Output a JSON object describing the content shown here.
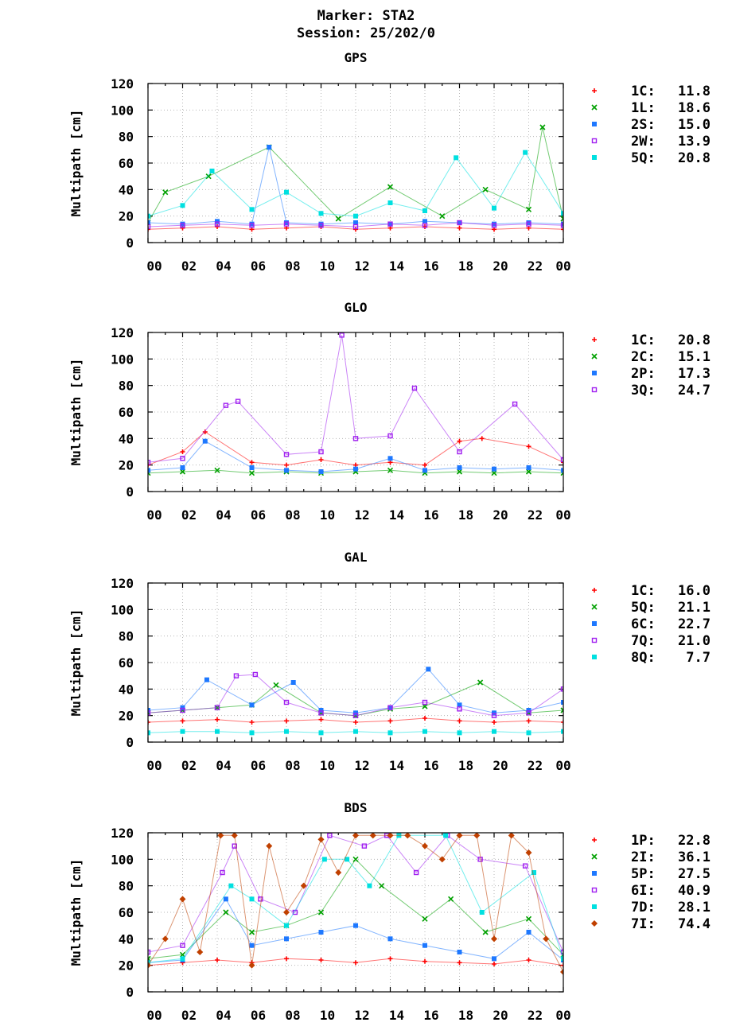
{
  "header": {
    "marker": "Marker: STA2",
    "session": "Session: 25/202/0"
  },
  "colors": {
    "red": "#ff0000",
    "green": "#00a000",
    "blue": "#1e78ff",
    "purple": "#a020f0",
    "cyan": "#00e0e0",
    "brown": "#c04000"
  },
  "chart_data": [
    {
      "type": "scatter",
      "title": "GPS",
      "xlabel": "",
      "ylabel": "Multipath [cm]",
      "xlim": [
        0,
        24
      ],
      "ylim": [
        0,
        120
      ],
      "xticks": [
        "00",
        "02",
        "04",
        "06",
        "08",
        "10",
        "12",
        "14",
        "16",
        "18",
        "20",
        "22",
        "00"
      ],
      "yticks": [
        0,
        20,
        40,
        60,
        80,
        100,
        120
      ],
      "grid": true,
      "legend_position": "right",
      "series": [
        {
          "name": "1C",
          "value": "11.8",
          "color": "#ff0000",
          "marker": "plus",
          "x": [
            0,
            2,
            4,
            6,
            8,
            10,
            12,
            14,
            16,
            18,
            20,
            22,
            24
          ],
          "y": [
            10,
            11,
            12,
            10,
            11,
            12,
            10,
            11,
            12,
            11,
            10,
            11,
            10
          ]
        },
        {
          "name": "1L",
          "value": "18.6",
          "color": "#00a000",
          "marker": "cross",
          "x": [
            0,
            1,
            3.5,
            7,
            11,
            14,
            17,
            19.5,
            22,
            22.8,
            24
          ],
          "y": [
            15,
            38,
            50,
            72,
            18,
            42,
            20,
            40,
            25,
            87,
            18
          ]
        },
        {
          "name": "2S",
          "value": "15.0",
          "color": "#1e78ff",
          "marker": "square",
          "x": [
            0,
            2,
            4,
            6,
            7,
            8,
            10,
            12,
            14,
            16,
            18,
            20,
            22,
            24
          ],
          "y": [
            15,
            14,
            16,
            14,
            72,
            15,
            14,
            15,
            14,
            16,
            15,
            14,
            15,
            14
          ]
        },
        {
          "name": "2W",
          "value": "13.9",
          "color": "#a020f0",
          "marker": "open-square",
          "x": [
            0,
            2,
            4,
            6,
            8,
            10,
            12,
            14,
            16,
            18,
            20,
            22,
            24
          ],
          "y": [
            12,
            13,
            14,
            13,
            14,
            13,
            12,
            14,
            13,
            15,
            13,
            14,
            13
          ]
        },
        {
          "name": "5Q",
          "value": "20.8",
          "color": "#00e0e0",
          "marker": "square",
          "x": [
            0,
            2,
            3.7,
            6,
            8,
            10,
            12,
            14,
            16,
            17.8,
            20,
            21.8,
            24
          ],
          "y": [
            20,
            28,
            54,
            25,
            38,
            22,
            20,
            30,
            24,
            64,
            26,
            68,
            22
          ]
        }
      ]
    },
    {
      "type": "scatter",
      "title": "GLO",
      "xlabel": "",
      "ylabel": "Multipath [cm]",
      "xlim": [
        0,
        24
      ],
      "ylim": [
        0,
        120
      ],
      "xticks": [
        "00",
        "02",
        "04",
        "06",
        "08",
        "10",
        "12",
        "14",
        "16",
        "18",
        "20",
        "22",
        "00"
      ],
      "yticks": [
        0,
        20,
        40,
        60,
        80,
        100,
        120
      ],
      "grid": true,
      "legend_position": "right",
      "series": [
        {
          "name": "1C",
          "value": "20.8",
          "color": "#ff0000",
          "marker": "plus",
          "x": [
            0,
            2,
            3.3,
            6,
            8,
            10,
            12,
            14,
            16,
            18,
            19.3,
            22,
            24
          ],
          "y": [
            20,
            30,
            45,
            22,
            20,
            24,
            20,
            22,
            20,
            38,
            40,
            34,
            22
          ]
        },
        {
          "name": "2C",
          "value": "15.1",
          "color": "#00a000",
          "marker": "cross",
          "x": [
            0,
            2,
            4,
            6,
            8,
            10,
            12,
            14,
            16,
            18,
            20,
            22,
            24
          ],
          "y": [
            14,
            15,
            16,
            14,
            15,
            14,
            15,
            16,
            14,
            15,
            14,
            15,
            14
          ]
        },
        {
          "name": "2P",
          "value": "17.3",
          "color": "#1e78ff",
          "marker": "square",
          "x": [
            0,
            2,
            3.3,
            6,
            8,
            10,
            12,
            14,
            16,
            18,
            20,
            22,
            24
          ],
          "y": [
            16,
            18,
            38,
            18,
            16,
            15,
            17,
            25,
            16,
            18,
            17,
            18,
            16
          ]
        },
        {
          "name": "3Q",
          "value": "24.7",
          "color": "#a020f0",
          "marker": "open-square",
          "x": [
            0,
            2,
            4.5,
            5.2,
            8,
            10,
            11.2,
            12,
            14,
            15.4,
            18,
            21.2,
            24
          ],
          "y": [
            22,
            25,
            65,
            68,
            28,
            30,
            118,
            40,
            42,
            78,
            30,
            66,
            24
          ]
        }
      ]
    },
    {
      "type": "scatter",
      "title": "GAL",
      "xlabel": "",
      "ylabel": "Multipath [cm]",
      "xlim": [
        0,
        24
      ],
      "ylim": [
        0,
        120
      ],
      "xticks": [
        "00",
        "02",
        "04",
        "06",
        "08",
        "10",
        "12",
        "14",
        "16",
        "18",
        "20",
        "22",
        "00"
      ],
      "yticks": [
        0,
        20,
        40,
        60,
        80,
        100,
        120
      ],
      "grid": true,
      "legend_position": "right",
      "series": [
        {
          "name": "1C",
          "value": "16.0",
          "color": "#ff0000",
          "marker": "plus",
          "x": [
            0,
            2,
            4,
            6,
            8,
            10,
            12,
            14,
            16,
            18,
            20,
            22,
            24
          ],
          "y": [
            15,
            16,
            17,
            15,
            16,
            17,
            15,
            16,
            18,
            16,
            15,
            16,
            15
          ]
        },
        {
          "name": "5Q",
          "value": "21.1",
          "color": "#00a000",
          "marker": "cross",
          "x": [
            0,
            2,
            4,
            6,
            7.4,
            10,
            12,
            14,
            16,
            19.2,
            22,
            24
          ],
          "y": [
            22,
            24,
            26,
            28,
            43,
            22,
            20,
            25,
            27,
            45,
            22,
            24
          ]
        },
        {
          "name": "6C",
          "value": "22.7",
          "color": "#1e78ff",
          "marker": "square",
          "x": [
            0,
            2,
            3.4,
            6,
            8.4,
            10,
            12,
            14,
            16.2,
            18,
            20,
            22,
            24
          ],
          "y": [
            24,
            26,
            47,
            28,
            45,
            24,
            22,
            26,
            55,
            28,
            22,
            24,
            30
          ]
        },
        {
          "name": "7Q",
          "value": "21.0",
          "color": "#a020f0",
          "marker": "open-square",
          "x": [
            0,
            2,
            4,
            5.1,
            6.2,
            8,
            10,
            12,
            14,
            16,
            18,
            20,
            22,
            24
          ],
          "y": [
            22,
            24,
            26,
            50,
            51,
            30,
            22,
            20,
            26,
            30,
            25,
            20,
            22,
            40
          ]
        },
        {
          "name": "8Q",
          "value": "7.7",
          "color": "#00e0e0",
          "marker": "square",
          "x": [
            0,
            2,
            4,
            6,
            8,
            10,
            12,
            14,
            16,
            18,
            20,
            22,
            24
          ],
          "y": [
            7,
            8,
            8,
            7,
            8,
            7,
            8,
            7,
            8,
            7,
            8,
            7,
            8
          ]
        }
      ]
    },
    {
      "type": "scatter",
      "title": "BDS",
      "xlabel": "",
      "ylabel": "Multipath [cm]",
      "xlim": [
        0,
        24
      ],
      "ylim": [
        0,
        120
      ],
      "xticks": [
        "00",
        "02",
        "04",
        "06",
        "08",
        "10",
        "12",
        "14",
        "16",
        "18",
        "20",
        "22",
        "00"
      ],
      "yticks": [
        0,
        20,
        40,
        60,
        80,
        100,
        120
      ],
      "grid": true,
      "legend_position": "right",
      "series": [
        {
          "name": "1P",
          "value": "22.8",
          "color": "#ff0000",
          "marker": "plus",
          "x": [
            0,
            2,
            4,
            6,
            8,
            10,
            12,
            14,
            16,
            18,
            20,
            22,
            24
          ],
          "y": [
            20,
            22,
            24,
            22,
            25,
            24,
            22,
            25,
            23,
            22,
            21,
            24,
            20
          ]
        },
        {
          "name": "2I",
          "value": "36.1",
          "color": "#00a000",
          "marker": "cross",
          "x": [
            0,
            2,
            4.5,
            6,
            8,
            10,
            12,
            13.5,
            16,
            17.5,
            19.5,
            22,
            24
          ],
          "y": [
            25,
            28,
            60,
            45,
            50,
            60,
            100,
            80,
            55,
            70,
            45,
            55,
            28
          ]
        },
        {
          "name": "5P",
          "value": "27.5",
          "color": "#1e78ff",
          "marker": "square",
          "x": [
            0,
            2,
            4.5,
            6,
            8,
            10,
            12,
            14,
            16,
            18,
            20,
            22,
            24
          ],
          "y": [
            22,
            24,
            70,
            35,
            40,
            45,
            50,
            40,
            35,
            30,
            25,
            45,
            24
          ]
        },
        {
          "name": "6I",
          "value": "40.9",
          "color": "#a020f0",
          "marker": "open-square",
          "x": [
            0,
            2,
            4.3,
            5.0,
            6.5,
            8.5,
            10.5,
            12.5,
            13.8,
            15.5,
            17.3,
            19.2,
            21.8,
            24
          ],
          "y": [
            30,
            35,
            90,
            110,
            70,
            60,
            118,
            110,
            118,
            90,
            118,
            100,
            95,
            30
          ]
        },
        {
          "name": "7D",
          "value": "28.1",
          "color": "#00e0e0",
          "marker": "square",
          "x": [
            0,
            2,
            4.8,
            6,
            8,
            10.2,
            11.5,
            12.8,
            14.5,
            17.2,
            19.3,
            22.3,
            24
          ],
          "y": [
            22,
            25,
            80,
            70,
            50,
            100,
            100,
            80,
            118,
            118,
            60,
            90,
            25
          ]
        },
        {
          "name": "7I",
          "value": "74.4",
          "color": "#c04000",
          "marker": "diamond",
          "x": [
            0,
            1,
            2,
            3,
            4.2,
            5,
            6,
            7,
            8,
            9,
            10,
            11,
            12,
            13,
            14,
            15,
            16,
            17,
            18,
            19,
            20,
            21,
            22,
            23,
            24
          ],
          "y": [
            20,
            40,
            70,
            30,
            118,
            118,
            20,
            110,
            60,
            80,
            115,
            90,
            118,
            118,
            118,
            118,
            110,
            100,
            118,
            118,
            40,
            118,
            105,
            40,
            15
          ]
        }
      ]
    }
  ]
}
